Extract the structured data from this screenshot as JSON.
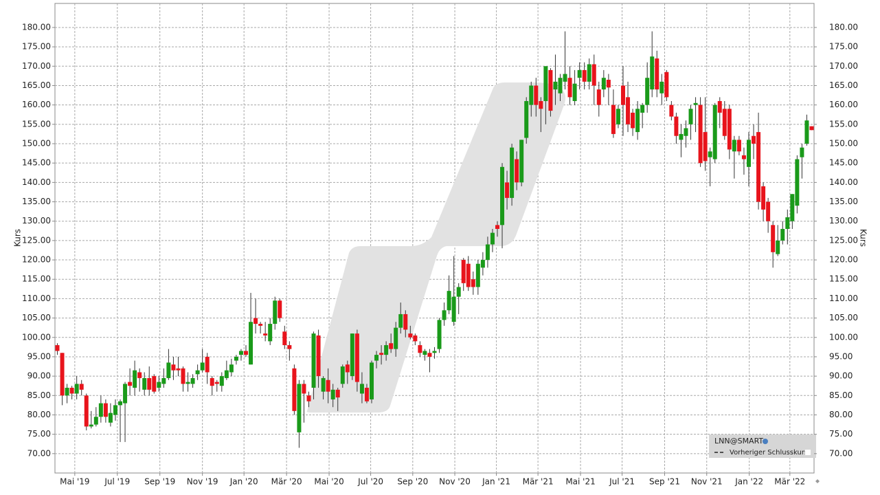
{
  "chart_data": {
    "type": "candlestick",
    "ylabel": "Kurs",
    "legend_title": "LNN@SMART",
    "reference_line_name": "Vorheriger Schlusskurs",
    "up_color": "#1a9a1a",
    "down_color": "#e8141c",
    "grid": true,
    "ylim": [
      65,
      186.2
    ],
    "yticks": [
      {
        "value": 70,
        "label": "70.00"
      },
      {
        "value": 75,
        "label": "75.00"
      },
      {
        "value": 80,
        "label": "80.00"
      },
      {
        "value": 85,
        "label": "85.00"
      },
      {
        "value": 90,
        "label": "90.00"
      },
      {
        "value": 95,
        "label": "95.00"
      },
      {
        "value": 100,
        "label": "100.00"
      },
      {
        "value": 105,
        "label": "105.00"
      },
      {
        "value": 110,
        "label": "110.00"
      },
      {
        "value": 115,
        "label": "115.00"
      },
      {
        "value": 120,
        "label": "120.00"
      },
      {
        "value": 125,
        "label": "125.00"
      },
      {
        "value": 130,
        "label": "130.00"
      },
      {
        "value": 135,
        "label": "135.00"
      },
      {
        "value": 140,
        "label": "140.00"
      },
      {
        "value": 145,
        "label": "145.00"
      },
      {
        "value": 150,
        "label": "150.00"
      },
      {
        "value": 155,
        "label": "155.00"
      },
      {
        "value": 160,
        "label": "160.00"
      },
      {
        "value": 165,
        "label": "165.00"
      },
      {
        "value": 170,
        "label": "170.00"
      },
      {
        "value": 175,
        "label": "175.00"
      },
      {
        "value": 180,
        "label": "180.00"
      }
    ],
    "xlim": [
      0,
      157
    ],
    "xticks": [
      {
        "value": 4.1,
        "label": "Mai '19"
      },
      {
        "value": 12.9,
        "label": "Jul '19"
      },
      {
        "value": 21.7,
        "label": "Sep '19"
      },
      {
        "value": 30.5,
        "label": "Nov '19"
      },
      {
        "value": 39.1,
        "label": "Jan '20"
      },
      {
        "value": 47.9,
        "label": "Mär '20"
      },
      {
        "value": 56.7,
        "label": "Mai '20"
      },
      {
        "value": 65.3,
        "label": "Jul '20"
      },
      {
        "value": 74.0,
        "label": "Sep '20"
      },
      {
        "value": 82.7,
        "label": "Nov '20"
      },
      {
        "value": 91.3,
        "label": "Jan '21"
      },
      {
        "value": 99.9,
        "label": "Mär '21"
      },
      {
        "value": 108.7,
        "label": "Mai '21"
      },
      {
        "value": 117.3,
        "label": "Jul '21"
      },
      {
        "value": 126.1,
        "label": "Sep '21"
      },
      {
        "value": 134.8,
        "label": "Nov '21"
      },
      {
        "value": 143.6,
        "label": "Jan '22"
      },
      {
        "value": 152.0,
        "label": "Mär '22"
      }
    ],
    "open": [
      98,
      96,
      85,
      87,
      85.5,
      88,
      85,
      77,
      77.5,
      79.5,
      83,
      78,
      80,
      82.5,
      83,
      88.5,
      87,
      91,
      86.5,
      89.5,
      90,
      87,
      88,
      89.5,
      93,
      92,
      92,
      88,
      88,
      90.5,
      91.5,
      95,
      89.5,
      88.5,
      87.5,
      89.5,
      91,
      94,
      95.5,
      96.5,
      93,
      105,
      103.5,
      101,
      99,
      103.5,
      109.5,
      101.5,
      98,
      92,
      75.5,
      88,
      85,
      87,
      100.5,
      86,
      89,
      84,
      86.5,
      88,
      93,
      90,
      101,
      85.5,
      87,
      84,
      94,
      96,
      95.5,
      98.5,
      97,
      102.5,
      106,
      101,
      100.5,
      98,
      95.5,
      96,
      96,
      97,
      104.5,
      107,
      104,
      110.5,
      120,
      119,
      115,
      113,
      118,
      120,
      124,
      129,
      129,
      140,
      136,
      146,
      140,
      151.5,
      160,
      165,
      161,
      161,
      169,
      164,
      163,
      166,
      167,
      161,
      167,
      169,
      166,
      170.5,
      164,
      164,
      166.5,
      160,
      155,
      165,
      162,
      158,
      153,
      158,
      160,
      164,
      172,
      163,
      168.5,
      160,
      157,
      151,
      152,
      155,
      160,
      160,
      153,
      146.5,
      146,
      161,
      159,
      159,
      148,
      151,
      147,
      144,
      152,
      153,
      139,
      135,
      129,
      121.5,
      125,
      128,
      130,
      134,
      146.5,
      150,
      154.5
    ],
    "high": [
      98.5,
      96,
      88,
      87.5,
      90,
      89,
      85.5,
      81,
      82,
      85,
      84,
      83,
      84,
      84,
      88.5,
      92,
      94,
      92,
      91,
      92.5,
      90.5,
      90,
      92,
      97,
      95,
      95,
      92.5,
      91,
      90.5,
      93,
      97,
      96,
      90,
      89,
      91,
      94,
      94.5,
      95.5,
      97,
      98,
      111.5,
      110,
      104,
      104,
      105,
      110.5,
      110,
      103,
      99,
      93,
      89,
      89,
      86,
      101.5,
      102,
      90,
      92,
      88,
      87,
      93,
      94,
      101,
      102,
      91,
      88,
      94,
      96.5,
      98,
      99,
      101,
      104,
      109,
      107,
      103,
      101,
      99,
      97,
      97,
      97.5,
      105,
      109,
      116,
      121,
      114,
      120.5,
      121,
      117,
      120,
      122,
      126,
      128,
      130,
      145,
      143,
      150,
      148,
      151,
      162,
      166,
      167,
      162,
      170,
      169.5,
      173,
      168,
      179,
      170,
      169,
      171,
      171,
      172,
      173,
      166,
      169,
      168,
      164,
      160,
      170,
      166,
      159,
      161,
      160.5,
      171,
      179,
      174,
      168,
      169,
      161,
      158,
      155,
      156,
      160,
      162,
      162,
      162,
      149,
      160.5,
      162,
      161,
      160,
      152,
      152,
      149,
      153,
      155,
      158,
      140,
      136,
      130,
      129,
      130,
      133,
      137,
      147,
      150,
      157.5,
      154.5
    ],
    "low": [
      95.5,
      82.5,
      83,
      84,
      84,
      85,
      76,
      76.5,
      77,
      78,
      78,
      77,
      78.5,
      73,
      73,
      85,
      85,
      86,
      85,
      85,
      85.5,
      86,
      87,
      89,
      89,
      90,
      86,
      86,
      87,
      89,
      91,
      88,
      85,
      86,
      86,
      89,
      90,
      93,
      94,
      95,
      93,
      101,
      101,
      99,
      98,
      102,
      104,
      97,
      94,
      80,
      71.5,
      78,
      82,
      84,
      87,
      84,
      83,
      82,
      81,
      87,
      88,
      89,
      86,
      83,
      83,
      83,
      92,
      93,
      94,
      96,
      95,
      101,
      100,
      99.5,
      98,
      95,
      94,
      91,
      94.5,
      96,
      103,
      106,
      103,
      106,
      112,
      112,
      111,
      111,
      116,
      118,
      122,
      126,
      123,
      133,
      134,
      138,
      139,
      150,
      157,
      157,
      153,
      155,
      157,
      160,
      161,
      164,
      160,
      160,
      164,
      164,
      164,
      160,
      157,
      162,
      160,
      151.5,
      154,
      152,
      153,
      152,
      151,
      154,
      158,
      162,
      162,
      160,
      161,
      156,
      150,
      146.5,
      149,
      151,
      153,
      144,
      143,
      139,
      145,
      154,
      151,
      146,
      141,
      147,
      142,
      139,
      146,
      133,
      130,
      127,
      118,
      121,
      124,
      124,
      128,
      132,
      141,
      149.5,
      153.5
    ],
    "close": [
      96.5,
      85,
      87,
      85.5,
      88,
      86.5,
      77,
      77.5,
      79.5,
      83,
      79.5,
      80.5,
      82.5,
      83.5,
      88,
      87.5,
      91.5,
      89.5,
      89.5,
      86.5,
      86,
      88.5,
      89.5,
      93.5,
      91.5,
      91.5,
      88,
      88.5,
      89.5,
      91.5,
      93.5,
      91,
      87.5,
      88,
      90,
      91.5,
      93,
      95,
      96.5,
      95.5,
      104,
      103.5,
      103,
      100.5,
      103.5,
      109.5,
      105,
      98,
      97,
      81,
      88,
      85.5,
      83.5,
      101,
      90,
      89.5,
      86,
      86.5,
      84.5,
      92.5,
      91,
      101,
      88.5,
      88,
      83.5,
      93.5,
      95.5,
      95.5,
      98,
      97,
      102.5,
      106,
      102,
      100,
      99,
      96,
      96.5,
      95,
      96.5,
      104.5,
      107,
      112,
      110.5,
      113,
      114,
      113,
      113,
      119,
      120,
      124,
      127,
      128,
      144,
      136,
      149,
      140,
      151,
      161,
      165,
      160,
      159,
      170,
      158.5,
      166,
      167,
      168,
      162,
      165.5,
      169,
      166,
      170.5,
      165,
      160,
      167,
      164.5,
      152.5,
      159,
      160,
      155,
      154,
      159,
      160,
      167,
      172.5,
      164,
      166,
      162,
      157,
      152,
      152.5,
      154,
      159,
      160.5,
      145,
      145.5,
      148,
      160,
      158,
      152,
      148.5,
      151,
      148,
      146,
      151,
      150,
      135,
      133,
      130,
      122,
      125,
      128,
      131,
      137,
      146,
      149,
      156,
      153.5
    ]
  }
}
